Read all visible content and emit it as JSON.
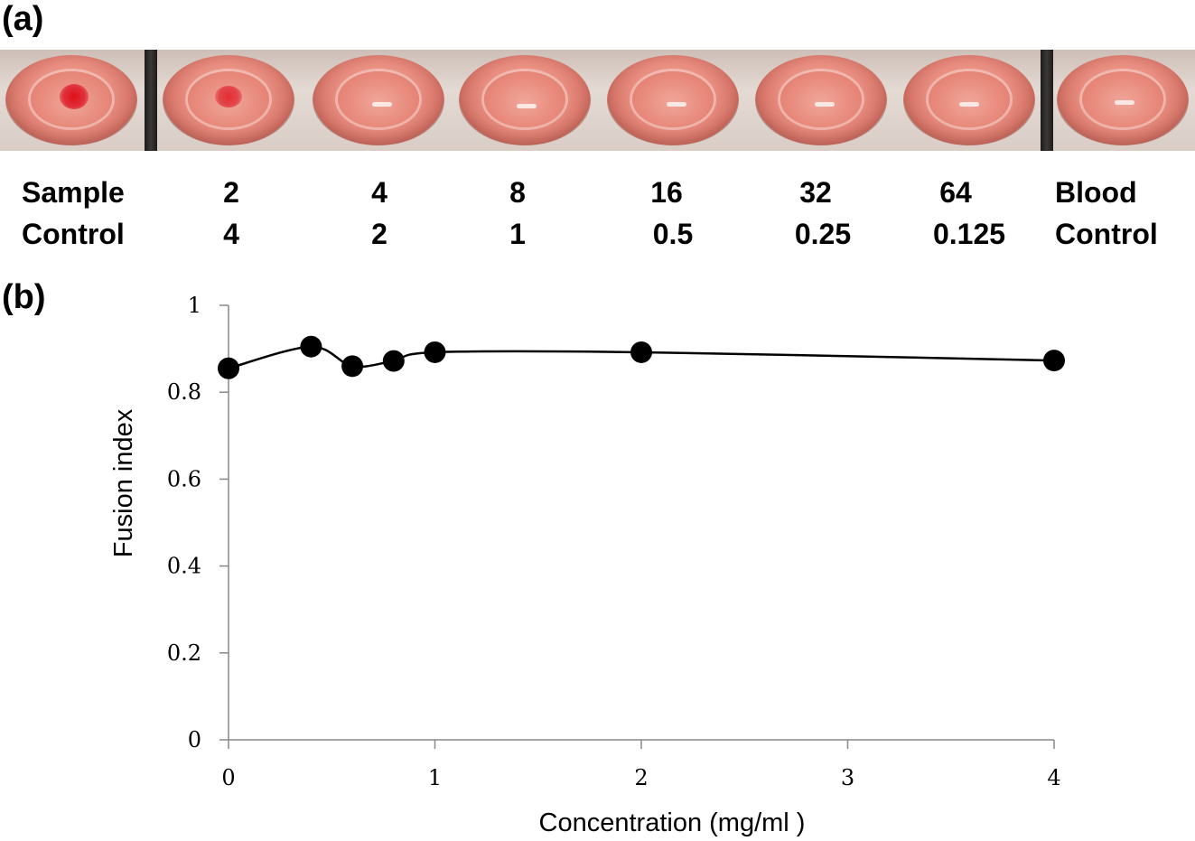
{
  "panel_a": {
    "label": "(a)",
    "row1_header": "Sample",
    "row2_header": "Control",
    "row3_header_1": "Blood",
    "row3_header_2": "Control",
    "columns": [
      {
        "top": "2",
        "bottom": "4"
      },
      {
        "top": "4",
        "bottom": "2"
      },
      {
        "top": "8",
        "bottom": "1"
      },
      {
        "top": "16",
        "bottom": "0.5"
      },
      {
        "top": "32",
        "bottom": "0.25"
      },
      {
        "top": "64",
        "bottom": "0.125"
      }
    ],
    "colors": {
      "well_liquid": "#e88d80",
      "clot": "#e0101a",
      "divider": "#1d1b1a"
    }
  },
  "panel_b": {
    "label": "(b)"
  },
  "chart_data": {
    "type": "line",
    "xlabel": "Concentration (mg/ml )",
    "ylabel": "Fusion index",
    "xlim": [
      0,
      4
    ],
    "ylim": [
      0,
      1
    ],
    "xticks": [
      0,
      1,
      2,
      3,
      4
    ],
    "xtick_labels": [
      "0",
      "1",
      "2",
      "3",
      "4"
    ],
    "yticks": [
      0,
      0.2,
      0.4,
      0.6,
      0.8,
      1
    ],
    "ytick_labels": [
      "0",
      "0.2",
      "0.4",
      "0.6",
      "0.8",
      "1"
    ],
    "grid": false,
    "series": [
      {
        "x": [
          0,
          0.4,
          0.6,
          0.8,
          1,
          2,
          4
        ],
        "y": [
          0.855,
          0.905,
          0.86,
          0.872,
          0.892,
          0.892,
          0.873
        ],
        "color": "#000000",
        "marker": "filled-circle",
        "smooth": true
      }
    ]
  }
}
